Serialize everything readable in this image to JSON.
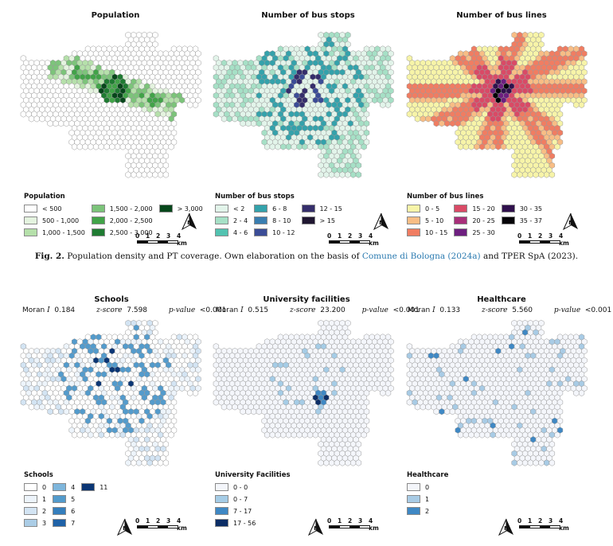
{
  "top_maps": [
    {
      "key": "population",
      "title": "Population",
      "legend_title": "Population",
      "legend_items": [
        {
          "label": "< 500",
          "color": "#ffffff"
        },
        {
          "label": "500 - 1,000",
          "color": "#e4f3df"
        },
        {
          "label": "1,000 - 1,500",
          "color": "#b5e0aa"
        },
        {
          "label": "1,500 - 2,000",
          "color": "#7cc47a"
        },
        {
          "label": "2,000 - 2,500",
          "color": "#41a348"
        },
        {
          "label": "2,500 - 3,000",
          "color": "#1f7b32"
        },
        {
          "label": "> 3,000",
          "color": "#07471b"
        }
      ],
      "legend_rows": 3
    },
    {
      "key": "bus_stops",
      "title": "Number of bus stops",
      "legend_title": "Number of bus stops",
      "legend_items": [
        {
          "label": "< 2",
          "color": "#e2f4ea"
        },
        {
          "label": "2 - 4",
          "color": "#a6e0c6"
        },
        {
          "label": "4 - 6",
          "color": "#52c2b0"
        },
        {
          "label": "6 - 8",
          "color": "#34a2ab"
        },
        {
          "label": "8 - 10",
          "color": "#3a7eb0"
        },
        {
          "label": "10 - 12",
          "color": "#3b4c96"
        },
        {
          "label": "12 - 15",
          "color": "#352e6b"
        },
        {
          "label": "> 15",
          "color": "#1f1631"
        }
      ],
      "legend_rows": 3
    },
    {
      "key": "bus_lines",
      "title": "Number of bus lines",
      "legend_title": "Number of bus lines",
      "legend_items": [
        {
          "label": "0 - 5",
          "color": "#f7f4a8"
        },
        {
          "label": "5 - 10",
          "color": "#f8bd85"
        },
        {
          "label": "10 - 15",
          "color": "#f07d62"
        },
        {
          "label": "15 - 20",
          "color": "#d94a66"
        },
        {
          "label": "20 - 25",
          "color": "#a8307a"
        },
        {
          "label": "25 - 30",
          "color": "#6d1f7f"
        },
        {
          "label": "30 - 35",
          "color": "#30114d"
        },
        {
          "label": "35 - 37",
          "color": "#050308"
        }
      ],
      "legend_rows": 3
    }
  ],
  "caption": {
    "label": "Fig. 2.",
    "text_before": "Population density and PT coverage. Own elaboration on the basis of",
    "cite": "Comune di Bologna (2024a)",
    "text_after": "and TPER SpA (2023)."
  },
  "bottom_maps": [
    {
      "key": "schools",
      "title": "Schools",
      "moran_label": "Moran",
      "moran_symbol": "I",
      "moran_value": "0.184",
      "z_label": "z-score",
      "z_value": "7.598",
      "p_label": "p-value",
      "p_value": "<0.001",
      "legend_title": "Schools",
      "legend_items": [
        {
          "label": "0",
          "color": "#ffffff"
        },
        {
          "label": "1",
          "color": "#edf4fb"
        },
        {
          "label": "2",
          "color": "#d3e4f3"
        },
        {
          "label": "3",
          "color": "#abcde6"
        },
        {
          "label": "4",
          "color": "#7eb6dc"
        },
        {
          "label": "5",
          "color": "#539bcc"
        },
        {
          "label": "6",
          "color": "#357fbd"
        },
        {
          "label": "7",
          "color": "#1f62a8"
        },
        {
          "label": "11",
          "color": "#0b3675"
        }
      ],
      "legend_rows": 4
    },
    {
      "key": "university",
      "title": "University facilities",
      "moran_label": "Moran",
      "moran_symbol": "I",
      "moran_value": "0.515",
      "z_label": "z-score",
      "z_value": "23.200",
      "p_label": "p-value",
      "p_value": "<0.001",
      "legend_title": "University Facilities",
      "legend_items": [
        {
          "label": "0 - 0",
          "color": "#f4f6fb"
        },
        {
          "label": "0 - 7",
          "color": "#a5cce6"
        },
        {
          "label": "7 - 17",
          "color": "#3f88c4"
        },
        {
          "label": "17 - 56",
          "color": "#0c2e66"
        }
      ],
      "legend_rows": 4
    },
    {
      "key": "healthcare",
      "title": "Healthcare",
      "moran_label": "Moran",
      "moran_symbol": "I",
      "moran_value": "0.133",
      "z_label": "z-score",
      "z_value": "5.560",
      "p_label": "p-value",
      "p_value": "<0.001",
      "legend_title": "Healthcare",
      "legend_items": [
        {
          "label": "0",
          "color": "#f4f6fb"
        },
        {
          "label": "1",
          "color": "#a8cbe5"
        },
        {
          "label": "2",
          "color": "#3f88c4"
        }
      ],
      "legend_rows": 3
    }
  ],
  "scale_bar": {
    "ticks": [
      "0",
      "1",
      "2",
      "3",
      "4 km"
    ]
  },
  "north_arrow": {
    "icon": "north-arrow-icon",
    "letter": "N"
  }
}
